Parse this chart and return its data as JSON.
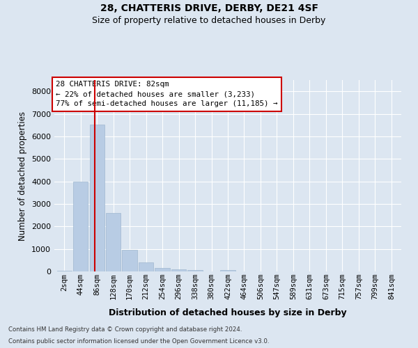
{
  "title": "28, CHATTERIS DRIVE, DERBY, DE21 4SF",
  "subtitle": "Size of property relative to detached houses in Derby",
  "xlabel": "Distribution of detached houses by size in Derby",
  "ylabel": "Number of detached properties",
  "footnote1": "Contains HM Land Registry data © Crown copyright and database right 2024.",
  "footnote2": "Contains public sector information licensed under the Open Government Licence v3.0.",
  "annotation_line1": "28 CHATTERIS DRIVE: 82sqm",
  "annotation_line2": "← 22% of detached houses are smaller (3,233)",
  "annotation_line3": "77% of semi-detached houses are larger (11,185) →",
  "bar_color": "#b8cce4",
  "bar_edgecolor": "#a0b8d0",
  "vline_color": "#cc0000",
  "annotation_box_edgecolor": "#cc0000",
  "annotation_box_facecolor": "#ffffff",
  "bg_color": "#dce6f1",
  "plot_bg_color": "#dce6f1",
  "categories": [
    "2sqm",
    "44sqm",
    "86sqm",
    "128sqm",
    "170sqm",
    "212sqm",
    "254sqm",
    "296sqm",
    "338sqm",
    "380sqm",
    "422sqm",
    "464sqm",
    "506sqm",
    "547sqm",
    "589sqm",
    "631sqm",
    "673sqm",
    "715sqm",
    "757sqm",
    "799sqm",
    "841sqm"
  ],
  "values": [
    30,
    3980,
    6520,
    2600,
    950,
    400,
    150,
    100,
    50,
    10,
    50,
    0,
    0,
    0,
    0,
    0,
    0,
    0,
    0,
    0,
    0
  ],
  "ylim": [
    0,
    8500
  ],
  "yticks": [
    0,
    1000,
    2000,
    3000,
    4000,
    5000,
    6000,
    7000,
    8000
  ],
  "grid_color": "#ffffff",
  "vline_x": 1.88
}
